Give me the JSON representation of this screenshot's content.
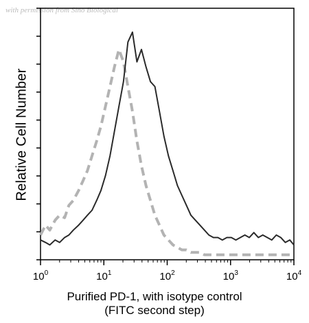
{
  "watermark": "with permission from Sino Biological",
  "chart_data": {
    "type": "line",
    "xscale": "log",
    "xlim": [
      1,
      10000
    ],
    "ylim": [
      0,
      100
    ],
    "ylabel": "Relative Cell Number",
    "xlabel_lines": [
      "Purified PD-1, with isotype control",
      "(FITC second step)"
    ],
    "x_ticks": [
      {
        "value": 1,
        "base": "10",
        "exp": "0"
      },
      {
        "value": 10,
        "base": "10",
        "exp": "1"
      },
      {
        "value": 100,
        "base": "10",
        "exp": "2"
      },
      {
        "value": 1000,
        "base": "10",
        "exp": "3"
      },
      {
        "value": 10000,
        "base": "10",
        "exp": "4"
      }
    ],
    "series": [
      {
        "style": "dashed",
        "color": "#b3b3b3",
        "x": [
          1,
          1.2,
          1.4,
          1.7,
          2,
          2.4,
          2.8,
          3.3,
          4,
          4.7,
          5.5,
          6.5,
          7.7,
          9,
          10.6,
          12.5,
          14.7,
          17.3,
          20.4,
          24,
          28.3,
          33.3,
          39.2,
          46.2,
          54.4,
          64,
          75.4,
          88.8,
          104.6,
          123.2,
          145.1,
          170.8,
          201.1,
          236.8,
          278.8,
          328.3,
          386.6,
          455.2,
          536,
          631,
          743,
          875,
          1030,
          1213,
          1428,
          1681,
          1980,
          2331,
          2745,
          3232,
          3806,
          4481,
          5277,
          6213,
          7316,
          8615,
          10000
        ],
        "y": [
          10,
          14,
          12,
          16,
          18,
          17,
          22,
          24,
          28,
          32,
          36,
          42,
          48,
          54,
          62,
          70,
          78,
          85,
          80,
          70,
          60,
          48,
          38,
          30,
          24,
          18,
          14,
          10,
          8,
          6,
          5,
          4,
          4,
          3,
          3,
          3,
          2,
          2,
          2,
          2,
          2,
          2,
          2,
          2,
          2,
          2,
          2,
          2,
          2,
          2,
          2,
          2,
          2,
          2,
          2,
          2,
          2
        ]
      },
      {
        "style": "solid",
        "color": "#2a2a2a",
        "x": [
          1,
          1.2,
          1.4,
          1.7,
          2,
          2.4,
          2.8,
          3.3,
          4,
          4.7,
          5.5,
          6.5,
          7.7,
          9,
          10.6,
          12.5,
          14.7,
          17.3,
          20.4,
          24,
          28.3,
          33.3,
          39.2,
          46.2,
          54.4,
          64,
          75.4,
          88.8,
          104.6,
          123.2,
          145.1,
          170.8,
          201.1,
          236.8,
          278.8,
          328.3,
          386.6,
          455.2,
          536,
          631,
          743,
          875,
          1030,
          1213,
          1428,
          1681,
          1980,
          2331,
          2745,
          3232,
          3806,
          4481,
          5277,
          6213,
          7316,
          8615,
          10000
        ],
        "y": [
          8,
          7,
          6,
          8,
          7,
          9,
          10,
          12,
          14,
          16,
          18,
          20,
          24,
          28,
          34,
          42,
          52,
          62,
          72,
          88,
          92,
          80,
          85,
          78,
          72,
          70,
          60,
          50,
          42,
          36,
          30,
          26,
          22,
          18,
          16,
          14,
          12,
          10,
          9,
          9,
          8,
          9,
          9,
          8,
          9,
          10,
          9,
          11,
          9,
          10,
          9,
          8,
          10,
          9,
          7,
          8,
          6
        ]
      }
    ]
  }
}
